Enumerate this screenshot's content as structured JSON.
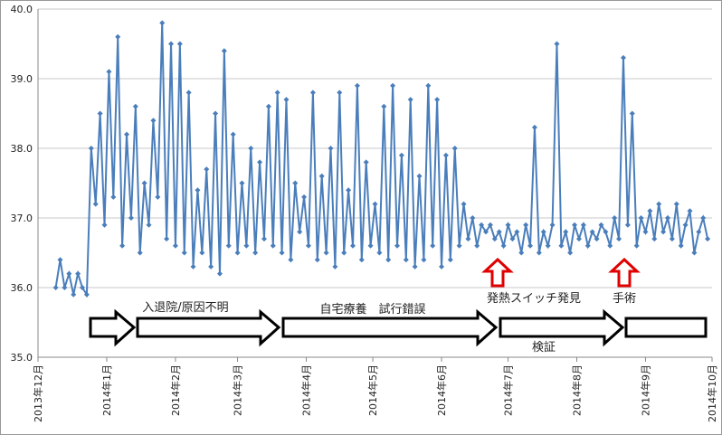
{
  "chart_data": {
    "type": "line",
    "x": [
      8,
      10,
      12,
      14,
      16,
      18,
      20,
      22,
      24,
      26,
      28,
      30,
      32,
      34,
      36,
      38,
      40,
      42,
      44,
      46,
      48,
      50,
      52,
      54,
      56,
      58,
      60,
      62,
      64,
      66,
      68,
      70,
      72,
      74,
      76,
      78,
      80,
      82,
      84,
      86,
      88,
      90,
      92,
      94,
      96,
      98,
      100,
      102,
      104,
      106,
      108,
      110,
      112,
      114,
      116,
      118,
      120,
      122,
      124,
      126,
      128,
      130,
      132,
      134,
      136,
      138,
      140,
      142,
      144,
      146,
      148,
      150,
      152,
      154,
      156,
      158,
      160,
      162,
      164,
      166,
      168,
      170,
      172,
      174,
      176,
      178,
      180,
      182,
      184,
      186,
      188,
      190,
      192,
      194,
      196,
      198,
      200,
      202,
      204,
      206,
      208,
      210,
      212,
      214,
      216,
      218,
      220,
      222,
      224,
      226,
      228,
      230,
      232,
      234,
      236,
      238,
      240,
      242,
      244,
      246,
      248,
      250,
      252,
      254,
      256,
      258,
      260,
      262,
      264,
      266,
      268,
      270,
      272,
      274,
      276,
      278,
      280,
      282,
      284,
      286,
      288,
      290,
      292,
      294,
      296,
      298,
      300,
      302
    ],
    "series": [
      {
        "color": "#4a7ebb",
        "values": [
          36.0,
          36.4,
          36.0,
          36.2,
          35.9,
          36.2,
          36.0,
          35.9,
          38.0,
          37.2,
          38.5,
          36.9,
          39.1,
          37.3,
          39.6,
          36.6,
          38.2,
          37.0,
          38.6,
          36.5,
          37.5,
          36.9,
          38.4,
          37.3,
          39.8,
          36.7,
          39.5,
          36.6,
          39.5,
          36.5,
          38.8,
          36.3,
          37.4,
          36.5,
          37.7,
          36.3,
          38.5,
          36.2,
          39.4,
          36.6,
          38.2,
          36.5,
          37.5,
          36.6,
          38.0,
          36.5,
          37.8,
          36.7,
          38.6,
          36.6,
          38.8,
          36.5,
          38.7,
          36.4,
          37.5,
          36.8,
          37.3,
          36.6,
          38.8,
          36.4,
          37.6,
          36.5,
          38.0,
          36.3,
          38.8,
          36.5,
          37.4,
          36.6,
          38.9,
          36.4,
          37.8,
          36.6,
          37.2,
          36.5,
          38.6,
          36.4,
          38.9,
          36.6,
          37.9,
          36.4,
          38.7,
          36.3,
          37.6,
          36.4,
          38.9,
          36.6,
          38.7,
          36.3,
          37.9,
          36.4,
          38.0,
          36.6,
          37.2,
          36.7,
          37.0,
          36.6,
          36.9,
          36.8,
          36.9,
          36.7,
          36.8,
          36.6,
          36.9,
          36.7,
          36.8,
          36.5,
          36.9,
          36.6,
          38.3,
          36.5,
          36.8,
          36.6,
          36.9,
          39.5,
          36.6,
          36.8,
          36.5,
          36.9,
          36.7,
          36.9,
          36.6,
          36.8,
          36.7,
          36.9,
          36.8,
          36.6,
          37.0,
          36.7,
          39.3,
          36.9,
          38.5,
          36.6,
          37.0,
          36.8,
          37.1,
          36.7,
          37.2,
          36.8,
          37.0,
          36.7,
          37.2,
          36.6,
          36.9,
          37.1,
          36.5,
          36.8,
          37.0,
          36.7
        ]
      }
    ],
    "xlim": [
      0,
      304
    ],
    "xticks": [
      {
        "value": 0,
        "label": "2013年12月"
      },
      {
        "value": 31,
        "label": "2014年1月"
      },
      {
        "value": 62,
        "label": "2014年2月"
      },
      {
        "value": 90,
        "label": "2014年3月"
      },
      {
        "value": 121,
        "label": "2014年4月"
      },
      {
        "value": 151,
        "label": "2014年5月"
      },
      {
        "value": 182,
        "label": "2014年6月"
      },
      {
        "value": 212,
        "label": "2014年7月"
      },
      {
        "value": 243,
        "label": "2014年8月"
      },
      {
        "value": 274,
        "label": "2014年9月"
      },
      {
        "value": 304,
        "label": "2014年10月"
      }
    ],
    "ylim": [
      35,
      40
    ],
    "yticks": [
      {
        "value": 35,
        "label": "35.0"
      },
      {
        "value": 36,
        "label": "36.0"
      },
      {
        "value": 37,
        "label": "37.0"
      },
      {
        "value": 38,
        "label": "38.0"
      },
      {
        "value": 39,
        "label": "39.0"
      },
      {
        "value": 40,
        "label": "40.0"
      }
    ],
    "grid": true,
    "annotations": [
      "入退院/原因不明",
      "自宅療養　試行錯誤",
      "発熱スイッチ発見",
      "手術",
      "検証"
    ]
  }
}
